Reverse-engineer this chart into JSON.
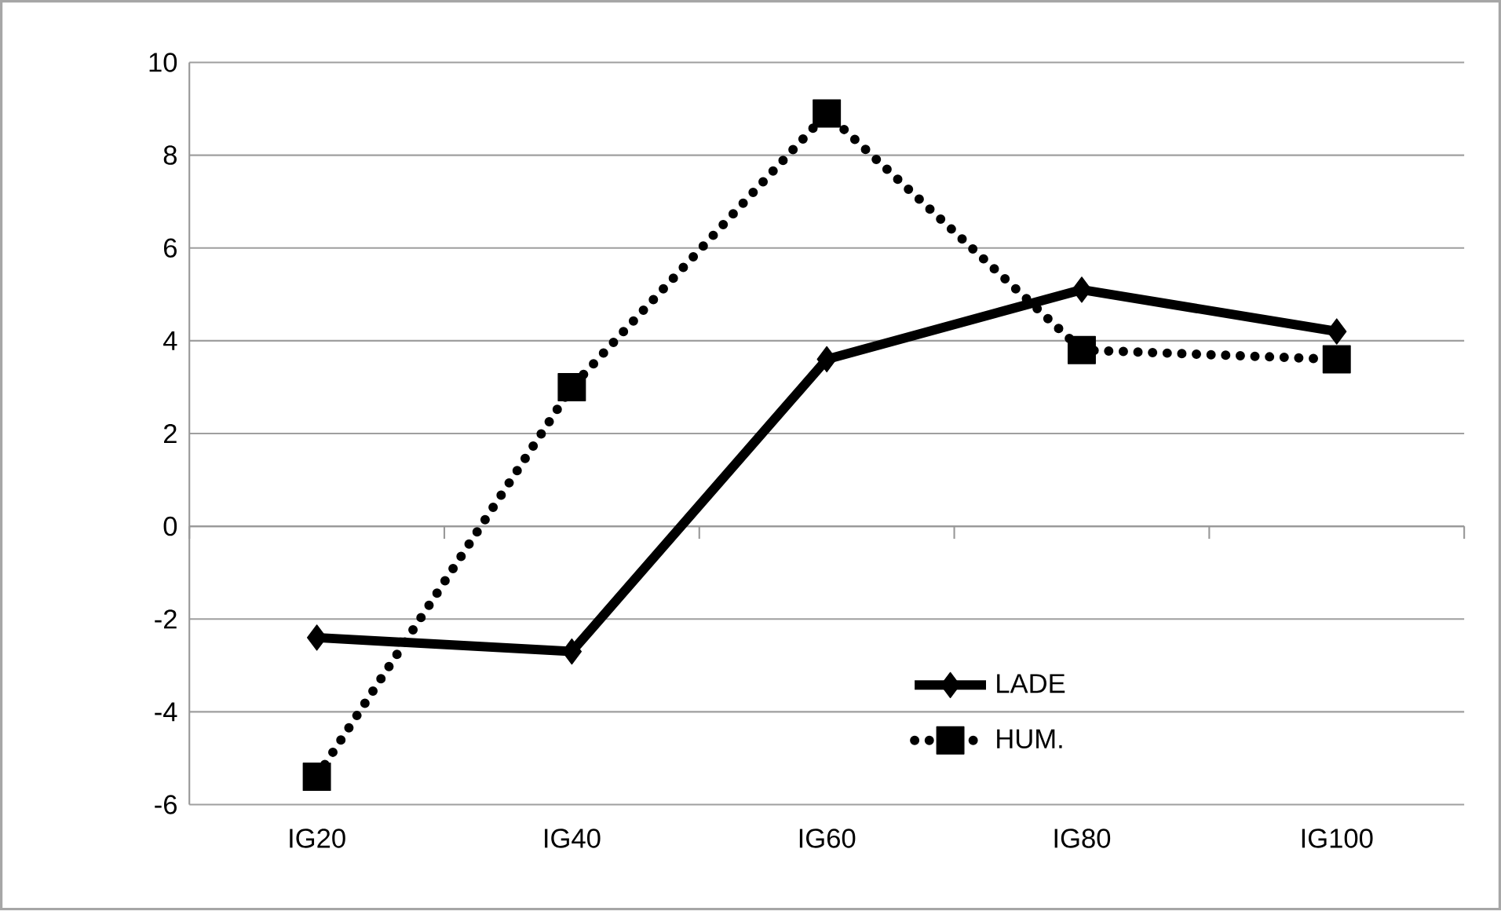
{
  "chart_data": {
    "type": "line",
    "categories": [
      "IG20",
      "IG40",
      "IG60",
      "IG80",
      "IG100"
    ],
    "series": [
      {
        "name": "LADE",
        "color": "#000000",
        "values": [
          -2.4,
          -2.7,
          3.6,
          5.1,
          4.2
        ],
        "marker": "diamond",
        "line_style": "solid"
      },
      {
        "name": "HUM.",
        "color": "#000000",
        "values": [
          -5.4,
          3.0,
          8.9,
          3.8,
          3.6
        ],
        "marker": "square",
        "line_style": "dotted"
      }
    ],
    "ylim": [
      -6,
      10
    ],
    "yticks": [
      -6,
      -4,
      -2,
      0,
      2,
      4,
      6,
      8,
      10
    ],
    "grid": "y",
    "legend": "bottom right"
  }
}
